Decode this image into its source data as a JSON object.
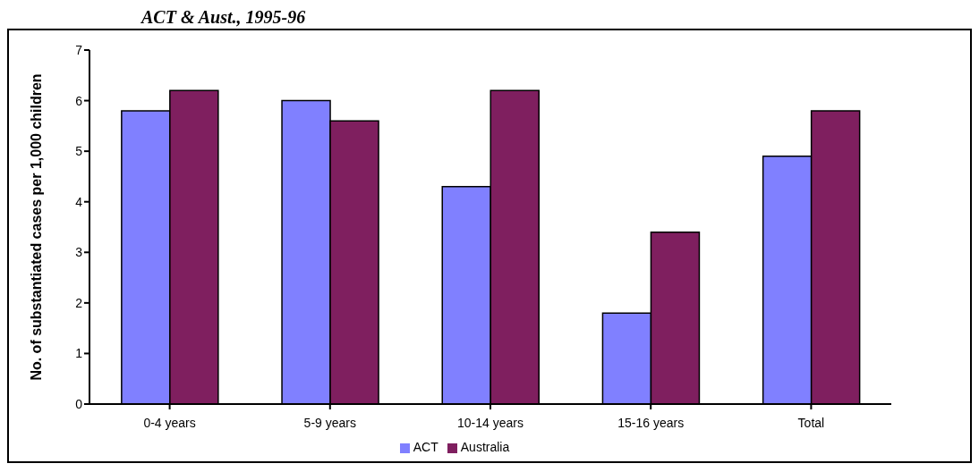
{
  "chart_data": {
    "type": "bar",
    "title": "ACT & Aust., 1995-96",
    "ylabel": "No. of substantiated cases per 1,000 children",
    "categories": [
      "0-4 years",
      "5-9 years",
      "10-14 years",
      "15-16 years",
      "Total"
    ],
    "series": [
      {
        "name": "ACT",
        "color": "#8080ff",
        "values": [
          5.8,
          6.0,
          4.3,
          1.8,
          4.9
        ]
      },
      {
        "name": "Australia",
        "color": "#7f1f5f",
        "values": [
          6.2,
          5.6,
          6.2,
          3.4,
          5.8
        ]
      }
    ],
    "ylim": [
      0,
      7
    ],
    "yticks": [
      0,
      1,
      2,
      3,
      4,
      5,
      6,
      7
    ],
    "grid": false,
    "legend": "bottom"
  }
}
